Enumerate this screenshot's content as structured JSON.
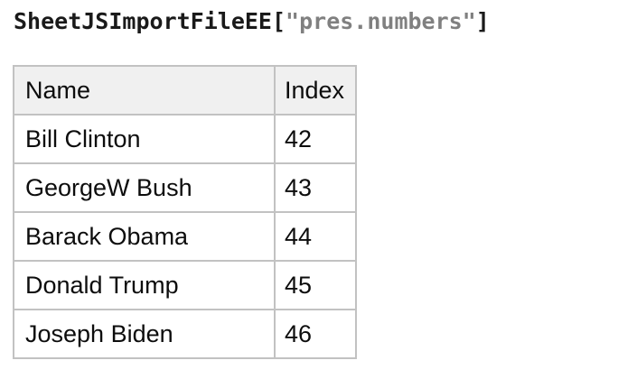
{
  "title": {
    "prefix": "SheetJSImportFileEE",
    "bracket_open": "[",
    "string": "\"pres.numbers\"",
    "bracket_close": "]",
    "prefix_color": "#1a1a1a",
    "string_color": "#808080"
  },
  "table": {
    "columns": [
      "Name",
      "Index"
    ],
    "rows": [
      {
        "name": "Bill Clinton",
        "index": "42"
      },
      {
        "name": "GeorgeW Bush",
        "index": "43"
      },
      {
        "name": "Barack Obama",
        "index": "44"
      },
      {
        "name": "Donald Trump",
        "index": "45"
      },
      {
        "name": "Joseph Biden",
        "index": "46"
      }
    ],
    "header_background": "#f0f0f0",
    "border_color": "#c2c2c2",
    "text_color": "#0d0d0d"
  }
}
